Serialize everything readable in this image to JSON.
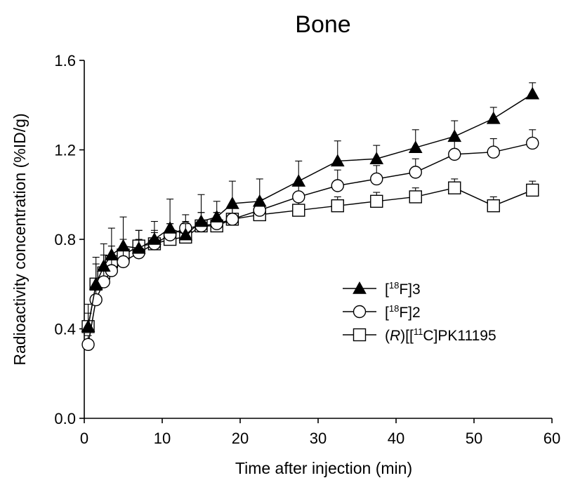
{
  "chart_data": {
    "type": "line",
    "title": "Bone",
    "xlabel": "Time after injection (min)",
    "ylabel": "Radioactivity concentration (%ID/g)",
    "xlim": [
      0,
      60
    ],
    "ylim": [
      0,
      1.6
    ],
    "xticks": [
      "0",
      "10",
      "20",
      "30",
      "40",
      "50",
      "60"
    ],
    "yticks": [
      "0.0",
      "0.4",
      "0.8",
      "1.2",
      "1.6"
    ],
    "grid": false,
    "legend_position": "bottom-right",
    "series": [
      {
        "name": "[18F]3",
        "legend_parts": {
          "pre": "[",
          "sup": "18",
          "post": "F]3",
          "italic": ""
        },
        "marker": "triangle-filled",
        "x": [
          0.5,
          1.5,
          2.5,
          3.5,
          5,
          7,
          9,
          11,
          13,
          15,
          17,
          19,
          22.5,
          27.5,
          32.5,
          37.5,
          42.5,
          47.5,
          52.5,
          57.5
        ],
        "y": [
          0.41,
          0.6,
          0.68,
          0.73,
          0.77,
          0.76,
          0.8,
          0.85,
          0.82,
          0.88,
          0.9,
          0.96,
          0.97,
          1.06,
          1.15,
          1.16,
          1.21,
          1.26,
          1.34,
          1.45
        ],
        "error": [
          0.06,
          0.12,
          0.1,
          0.12,
          0.13,
          0.08,
          0.08,
          0.13,
          0.05,
          0.12,
          0.07,
          0.1,
          0.1,
          0.09,
          0.09,
          0.06,
          0.08,
          0.07,
          0.05,
          0.05
        ]
      },
      {
        "name": "[18F]2",
        "legend_parts": {
          "pre": "[",
          "sup": "18",
          "post": "F]2",
          "italic": ""
        },
        "marker": "circle-open",
        "x": [
          0.5,
          1.5,
          2.5,
          3.5,
          5,
          7,
          9,
          11,
          13,
          15,
          17,
          19,
          22.5,
          27.5,
          32.5,
          37.5,
          42.5,
          47.5,
          52.5,
          57.5
        ],
        "y": [
          0.33,
          0.53,
          0.61,
          0.66,
          0.7,
          0.74,
          0.78,
          0.82,
          0.85,
          0.86,
          0.87,
          0.89,
          0.93,
          0.99,
          1.04,
          1.07,
          1.1,
          1.18,
          1.19,
          1.23
        ],
        "error": [
          0.04,
          0.05,
          0.05,
          0.06,
          0.05,
          0.06,
          0.05,
          0.05,
          0.06,
          0.06,
          0.05,
          0.05,
          0.05,
          0.06,
          0.07,
          0.06,
          0.06,
          0.06,
          0.06,
          0.06
        ]
      },
      {
        "name": "(R)[[11C]PK11195",
        "legend_parts": {
          "pre": "(",
          "italic": "R",
          "mid": ")[[",
          "sup": "11",
          "post": "C]PK11195"
        },
        "marker": "square-open",
        "x": [
          0.5,
          1.5,
          2.5,
          3.5,
          5,
          7,
          9,
          11,
          13,
          15,
          17,
          19,
          22.5,
          27.5,
          32.5,
          37.5,
          42.5,
          47.5,
          52.5,
          57.5
        ],
        "y": [
          0.41,
          0.6,
          0.65,
          0.7,
          0.73,
          0.77,
          0.78,
          0.8,
          0.81,
          0.86,
          0.86,
          0.89,
          0.91,
          0.93,
          0.95,
          0.97,
          0.99,
          1.03,
          0.95,
          1.02
        ],
        "error": [
          0.1,
          0.09,
          0.08,
          0.07,
          0.07,
          0.07,
          0.06,
          0.07,
          0.07,
          0.06,
          0.06,
          0.05,
          0.04,
          0.04,
          0.04,
          0.04,
          0.04,
          0.04,
          0.04,
          0.04
        ]
      }
    ]
  }
}
